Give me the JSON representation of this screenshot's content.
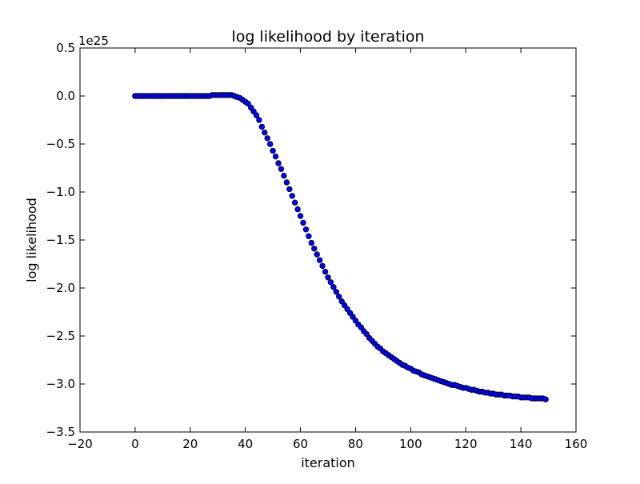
{
  "chart_data": {
    "type": "scatter",
    "title": "log likelihood by iteration",
    "xlabel": "iteration",
    "ylabel": "log likelihood",
    "xlim": [
      -20,
      160
    ],
    "ylim": [
      -3.5,
      0.5
    ],
    "y_offset_label": "1e25",
    "x_ticks": [
      -20,
      0,
      20,
      40,
      60,
      80,
      100,
      120,
      140,
      160
    ],
    "y_ticks": [
      0.5,
      0.0,
      -0.5,
      -1.0,
      -1.5,
      -2.0,
      -2.5,
      -3.0,
      -3.5
    ],
    "x_tick_labels": [
      "−20",
      "0",
      "20",
      "40",
      "60",
      "80",
      "100",
      "120",
      "140",
      "160"
    ],
    "y_tick_labels": [
      "0.5",
      "0.0",
      "−0.5",
      "−1.0",
      "−1.5",
      "−2.0",
      "−2.5",
      "−3.0",
      "−3.5"
    ],
    "grid": false,
    "legend": "none",
    "marker_color": "#0000ff",
    "marker_edge_color": "#000000",
    "series": [
      {
        "x": [
          0,
          1,
          2,
          3,
          4,
          5,
          6,
          7,
          8,
          9,
          10,
          11,
          12,
          13,
          14,
          15,
          16,
          17,
          18,
          19,
          20,
          21,
          22,
          23,
          24,
          25,
          26,
          27,
          28,
          29,
          30,
          31,
          32,
          33,
          34,
          35,
          36,
          37,
          38,
          39,
          40,
          41,
          42,
          43,
          44,
          45,
          46,
          47,
          48,
          49,
          50,
          51,
          52,
          53,
          54,
          55,
          56,
          57,
          58,
          59,
          60,
          61,
          62,
          63,
          64,
          65,
          66,
          67,
          68,
          69,
          70,
          71,
          72,
          73,
          74,
          75,
          76,
          77,
          78,
          79,
          80,
          81,
          82,
          83,
          84,
          85,
          86,
          87,
          88,
          89,
          90,
          91,
          92,
          93,
          94,
          95,
          96,
          97,
          98,
          99,
          100,
          101,
          102,
          103,
          104,
          105,
          106,
          107,
          108,
          109,
          110,
          111,
          112,
          113,
          114,
          115,
          116,
          117,
          118,
          119,
          120,
          121,
          122,
          123,
          124,
          125,
          126,
          127,
          128,
          129,
          130,
          131,
          132,
          133,
          134,
          135,
          136,
          137,
          138,
          139,
          140,
          141,
          142,
          143,
          144,
          145,
          146,
          147,
          148,
          149
        ],
        "y": [
          0,
          0,
          0,
          0,
          0,
          0,
          0,
          0,
          0,
          0,
          0,
          0,
          0,
          0,
          0,
          0,
          0,
          0,
          0,
          0,
          0,
          0,
          0,
          0,
          0,
          0,
          0,
          0,
          0.01,
          0.01,
          0.01,
          0.01,
          0.01,
          0.01,
          0.01,
          0.01,
          0.0,
          -0.01,
          -0.02,
          -0.04,
          -0.06,
          -0.08,
          -0.12,
          -0.16,
          -0.2,
          -0.25,
          -0.32,
          -0.38,
          -0.44,
          -0.5,
          -0.57,
          -0.63,
          -0.7,
          -0.76,
          -0.83,
          -0.9,
          -0.97,
          -1.04,
          -1.11,
          -1.18,
          -1.25,
          -1.32,
          -1.39,
          -1.46,
          -1.53,
          -1.59,
          -1.65,
          -1.71,
          -1.77,
          -1.83,
          -1.89,
          -1.94,
          -1.99,
          -2.04,
          -2.09,
          -2.14,
          -2.18,
          -2.22,
          -2.26,
          -2.3,
          -2.34,
          -2.38,
          -2.41,
          -2.45,
          -2.48,
          -2.52,
          -2.55,
          -2.58,
          -2.61,
          -2.63,
          -2.66,
          -2.68,
          -2.7,
          -2.72,
          -2.74,
          -2.76,
          -2.78,
          -2.8,
          -2.81,
          -2.83,
          -2.84,
          -2.86,
          -2.87,
          -2.88,
          -2.9,
          -2.91,
          -2.92,
          -2.93,
          -2.94,
          -2.95,
          -2.96,
          -2.97,
          -2.98,
          -2.99,
          -3.0,
          -3.01,
          -3.01,
          -3.02,
          -3.03,
          -3.04,
          -3.04,
          -3.05,
          -3.06,
          -3.06,
          -3.07,
          -3.08,
          -3.08,
          -3.09,
          -3.09,
          -3.1,
          -3.1,
          -3.11,
          -3.11,
          -3.11,
          -3.12,
          -3.12,
          -3.12,
          -3.13,
          -3.13,
          -3.13,
          -3.14,
          -3.14,
          -3.14,
          -3.14,
          -3.15,
          -3.15,
          -3.15,
          -3.15,
          -3.15,
          -3.16
        ]
      }
    ]
  }
}
